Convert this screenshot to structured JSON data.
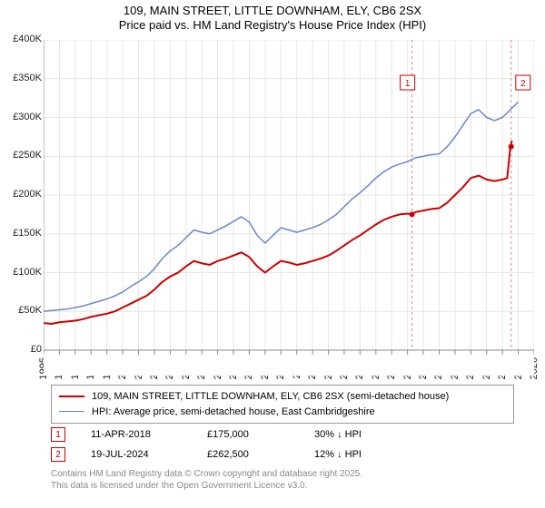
{
  "title": {
    "line1": "109, MAIN STREET, LITTLE DOWNHAM, ELY, CB6 2SX",
    "line2": "Price paid vs. HM Land Registry's House Price Index (HPI)",
    "fontsize": 13,
    "color": "#000000"
  },
  "chart": {
    "type": "line",
    "background_color": "#ffffff",
    "grid_color": "#e6e6e6",
    "axis_color": "#888888",
    "x": {
      "min": 1995,
      "max": 2026,
      "tick_step": 1,
      "labels": [
        "1995",
        "1996",
        "1997",
        "1998",
        "1999",
        "2000",
        "2001",
        "2002",
        "2003",
        "2004",
        "2005",
        "2006",
        "2007",
        "2008",
        "2009",
        "2010",
        "2011",
        "2012",
        "2013",
        "2014",
        "2015",
        "2016",
        "2017",
        "2018",
        "2019",
        "2020",
        "2021",
        "2022",
        "2023",
        "2024",
        "2025",
        "2026"
      ],
      "label_rotation": -90,
      "tick_fontsize": 11
    },
    "y": {
      "min": 0,
      "max": 400000,
      "tick_step": 50000,
      "labels": [
        "£0",
        "£50K",
        "£100K",
        "£150K",
        "£200K",
        "£250K",
        "£300K",
        "£350K",
        "£400K"
      ],
      "tick_fontsize": 11
    },
    "series": [
      {
        "name": "price_paid",
        "label": "109, MAIN STREET, LITTLE DOWNHAM, ELY, CB6 2SX (semi-detached house)",
        "color": "#cc0000",
        "line_width": 2,
        "data": [
          [
            1995.0,
            35000
          ],
          [
            1995.5,
            34000
          ],
          [
            1996.0,
            36000
          ],
          [
            1996.5,
            37000
          ],
          [
            1997.0,
            38000
          ],
          [
            1997.5,
            40000
          ],
          [
            1998.0,
            43000
          ],
          [
            1998.5,
            45000
          ],
          [
            1999.0,
            47000
          ],
          [
            1999.5,
            50000
          ],
          [
            2000.0,
            55000
          ],
          [
            2000.5,
            60000
          ],
          [
            2001.0,
            65000
          ],
          [
            2001.5,
            70000
          ],
          [
            2002.0,
            78000
          ],
          [
            2002.5,
            88000
          ],
          [
            2003.0,
            95000
          ],
          [
            2003.5,
            100000
          ],
          [
            2004.0,
            108000
          ],
          [
            2004.5,
            115000
          ],
          [
            2005.0,
            112000
          ],
          [
            2005.5,
            110000
          ],
          [
            2006.0,
            115000
          ],
          [
            2006.5,
            118000
          ],
          [
            2007.0,
            122000
          ],
          [
            2007.5,
            126000
          ],
          [
            2008.0,
            120000
          ],
          [
            2008.5,
            108000
          ],
          [
            2009.0,
            100000
          ],
          [
            2009.5,
            108000
          ],
          [
            2010.0,
            115000
          ],
          [
            2010.5,
            113000
          ],
          [
            2011.0,
            110000
          ],
          [
            2011.5,
            112000
          ],
          [
            2012.0,
            115000
          ],
          [
            2012.5,
            118000
          ],
          [
            2013.0,
            122000
          ],
          [
            2013.5,
            128000
          ],
          [
            2014.0,
            135000
          ],
          [
            2014.5,
            142000
          ],
          [
            2015.0,
            148000
          ],
          [
            2015.5,
            155000
          ],
          [
            2016.0,
            162000
          ],
          [
            2016.5,
            168000
          ],
          [
            2017.0,
            172000
          ],
          [
            2017.5,
            175000
          ],
          [
            2018.0,
            176000
          ],
          [
            2018.3,
            175000
          ],
          [
            2018.5,
            178000
          ],
          [
            2019.0,
            180000
          ],
          [
            2019.5,
            182000
          ],
          [
            2020.0,
            183000
          ],
          [
            2020.5,
            190000
          ],
          [
            2021.0,
            200000
          ],
          [
            2021.5,
            210000
          ],
          [
            2022.0,
            222000
          ],
          [
            2022.5,
            225000
          ],
          [
            2023.0,
            220000
          ],
          [
            2023.5,
            218000
          ],
          [
            2024.0,
            220000
          ],
          [
            2024.3,
            222000
          ],
          [
            2024.5,
            262500
          ],
          [
            2024.6,
            270000
          ]
        ]
      },
      {
        "name": "hpi",
        "label": "HPI: Average price, semi-detached house, East Cambridgeshire",
        "color": "#6688cc",
        "line_width": 1.5,
        "data": [
          [
            1995.0,
            50000
          ],
          [
            1995.5,
            51000
          ],
          [
            1996.0,
            52000
          ],
          [
            1996.5,
            53000
          ],
          [
            1997.0,
            55000
          ],
          [
            1997.5,
            57000
          ],
          [
            1998.0,
            60000
          ],
          [
            1998.5,
            63000
          ],
          [
            1999.0,
            66000
          ],
          [
            1999.5,
            70000
          ],
          [
            2000.0,
            75000
          ],
          [
            2000.5,
            82000
          ],
          [
            2001.0,
            88000
          ],
          [
            2001.5,
            95000
          ],
          [
            2002.0,
            105000
          ],
          [
            2002.5,
            118000
          ],
          [
            2003.0,
            128000
          ],
          [
            2003.5,
            135000
          ],
          [
            2004.0,
            145000
          ],
          [
            2004.5,
            155000
          ],
          [
            2005.0,
            152000
          ],
          [
            2005.5,
            150000
          ],
          [
            2006.0,
            155000
          ],
          [
            2006.5,
            160000
          ],
          [
            2007.0,
            166000
          ],
          [
            2007.5,
            172000
          ],
          [
            2008.0,
            165000
          ],
          [
            2008.5,
            148000
          ],
          [
            2009.0,
            138000
          ],
          [
            2009.5,
            148000
          ],
          [
            2010.0,
            158000
          ],
          [
            2010.5,
            155000
          ],
          [
            2011.0,
            152000
          ],
          [
            2011.5,
            155000
          ],
          [
            2012.0,
            158000
          ],
          [
            2012.5,
            162000
          ],
          [
            2013.0,
            168000
          ],
          [
            2013.5,
            175000
          ],
          [
            2014.0,
            185000
          ],
          [
            2014.5,
            195000
          ],
          [
            2015.0,
            203000
          ],
          [
            2015.5,
            212000
          ],
          [
            2016.0,
            222000
          ],
          [
            2016.5,
            230000
          ],
          [
            2017.0,
            236000
          ],
          [
            2017.5,
            240000
          ],
          [
            2018.0,
            243000
          ],
          [
            2018.5,
            248000
          ],
          [
            2019.0,
            250000
          ],
          [
            2019.5,
            252000
          ],
          [
            2020.0,
            253000
          ],
          [
            2020.5,
            262000
          ],
          [
            2021.0,
            275000
          ],
          [
            2021.5,
            290000
          ],
          [
            2022.0,
            305000
          ],
          [
            2022.5,
            310000
          ],
          [
            2023.0,
            300000
          ],
          [
            2023.5,
            296000
          ],
          [
            2024.0,
            300000
          ],
          [
            2024.5,
            310000
          ],
          [
            2025.0,
            320000
          ]
        ]
      }
    ],
    "markers": [
      {
        "id": "1",
        "x": 2018.28,
        "y": 175000,
        "label_x": 2018.0,
        "label_y": 345000,
        "box_color": "#cc0000",
        "vline_color": "#dd8888"
      },
      {
        "id": "2",
        "x": 2024.55,
        "y": 262500,
        "label_x": 2025.3,
        "label_y": 345000,
        "box_color": "#cc0000",
        "vline_color": "#dd8888"
      }
    ]
  },
  "legend": {
    "border_color": "#999999",
    "fontsize": 11,
    "items": [
      {
        "color": "#cc0000",
        "width": 2,
        "label_ref": "chart.series.0.label"
      },
      {
        "color": "#6688cc",
        "width": 1.5,
        "label_ref": "chart.series.1.label"
      }
    ]
  },
  "data_table": {
    "fontsize": 11,
    "rows": [
      {
        "marker": "1",
        "date": "11-APR-2018",
        "price": "£175,000",
        "pct": "30% ↓ HPI"
      },
      {
        "marker": "2",
        "date": "19-JUL-2024",
        "price": "£262,500",
        "pct": "12% ↓ HPI"
      }
    ]
  },
  "attribution": {
    "line1": "Contains HM Land Registry data © Crown copyright and database right 2025.",
    "line2": "This data is licensed under the Open Government Licence v3.0.",
    "color": "#888888",
    "fontsize": 10
  }
}
